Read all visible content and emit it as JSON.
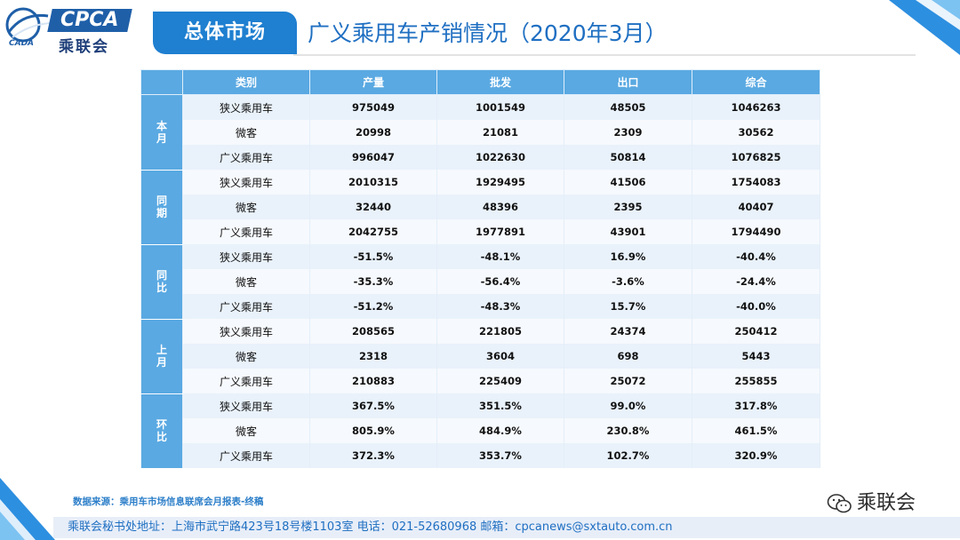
{
  "header": {
    "logo_en": "CPCA",
    "logo_sub": "CADA",
    "logo_cn": "乘联会",
    "section_tag": "总体市场",
    "title": "广义乘用车产销情况（2020年3月）"
  },
  "colors": {
    "header_blue": "#5aa9e2",
    "tag_blue": "#1f7fd0",
    "title_blue": "#1f6fc2",
    "row_light": "#e9f2fb"
  },
  "table": {
    "columns": [
      "类别",
      "产量",
      "批发",
      "出口",
      "综合"
    ],
    "groups": [
      {
        "label": "本月",
        "rows": [
          {
            "category": "狭义乘用车",
            "values": [
              "975049",
              "1001549",
              "48505",
              "1046263"
            ]
          },
          {
            "category": "微客",
            "values": [
              "20998",
              "21081",
              "2309",
              "30562"
            ]
          },
          {
            "category": "广义乘用车",
            "values": [
              "996047",
              "1022630",
              "50814",
              "1076825"
            ]
          }
        ]
      },
      {
        "label": "同期",
        "rows": [
          {
            "category": "狭义乘用车",
            "values": [
              "2010315",
              "1929495",
              "41506",
              "1754083"
            ]
          },
          {
            "category": "微客",
            "values": [
              "32440",
              "48396",
              "2395",
              "40407"
            ]
          },
          {
            "category": "广义乘用车",
            "values": [
              "2042755",
              "1977891",
              "43901",
              "1794490"
            ]
          }
        ]
      },
      {
        "label": "同比",
        "rows": [
          {
            "category": "狭义乘用车",
            "values": [
              "-51.5%",
              "-48.1%",
              "16.9%",
              "-40.4%"
            ]
          },
          {
            "category": "微客",
            "values": [
              "-35.3%",
              "-56.4%",
              "-3.6%",
              "-24.4%"
            ]
          },
          {
            "category": "广义乘用车",
            "values": [
              "-51.2%",
              "-48.3%",
              "15.7%",
              "-40.0%"
            ]
          }
        ]
      },
      {
        "label": "上月",
        "rows": [
          {
            "category": "狭义乘用车",
            "values": [
              "208565",
              "221805",
              "24374",
              "250412"
            ]
          },
          {
            "category": "微客",
            "values": [
              "2318",
              "3604",
              "698",
              "5443"
            ]
          },
          {
            "category": "广义乘用车",
            "values": [
              "210883",
              "225409",
              "25072",
              "255855"
            ]
          }
        ]
      },
      {
        "label": "环比",
        "rows": [
          {
            "category": "狭义乘用车",
            "values": [
              "367.5%",
              "351.5%",
              "99.0%",
              "317.8%"
            ]
          },
          {
            "category": "微客",
            "values": [
              "805.9%",
              "484.9%",
              "230.8%",
              "461.5%"
            ]
          },
          {
            "category": "广义乘用车",
            "values": [
              "372.3%",
              "353.7%",
              "102.7%",
              "320.9%"
            ]
          }
        ]
      }
    ]
  },
  "source": "数据来源：乘用车市场信息联席会月报表-终稿",
  "wechat": "乘联会",
  "footer": "乘联会秘书处地址：上海市武宁路423号18号楼1103室  电话：021-52680968  邮箱：cpcanews@sxtauto.com.cn"
}
